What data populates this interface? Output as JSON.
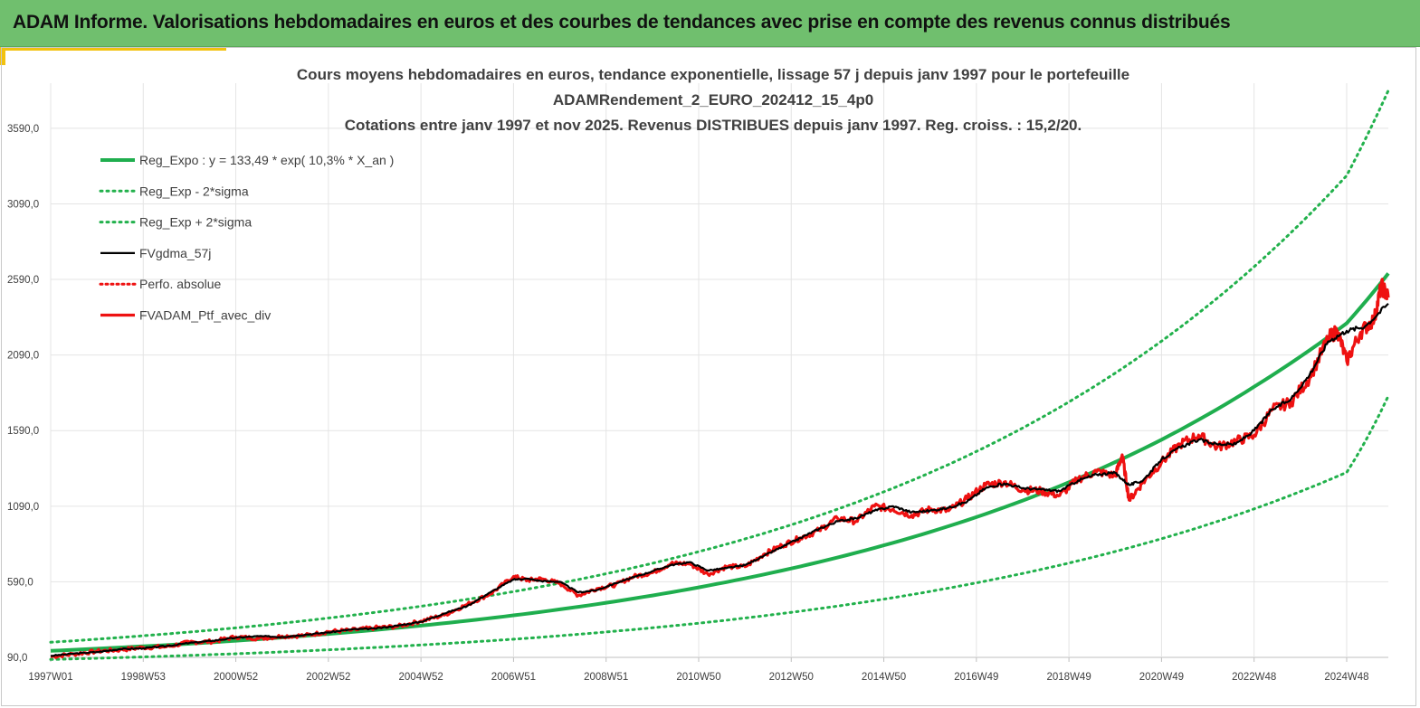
{
  "page": {
    "banner_title": "ADAM Informe. Valorisations hebdomadaires en euros et des courbes de tendances avec prise en compte des revenus connus distribués"
  },
  "colors": {
    "banner": "#70bf6e",
    "accent": "#f2c20f",
    "reg_expo": "#1fae4e",
    "band": "#22b14c",
    "gdma": "#000000",
    "ptf": "#ee1111",
    "grid": "#e4e4e4",
    "text": "#404040"
  },
  "chart_data": {
    "type": "line",
    "title_lines": [
      "Cours moyens hebdomadaires  en euros, tendance exponentielle, lissage 57 j depuis janv 1997 pour le portefeuille",
      "ADAMRendement_2_EURO_202412_15_4p0",
      "Cotations  entre janv 1997 et nov 2025. Revenus DISTRIBUES depuis janv 1997. Reg. croiss. : 15,2/20."
    ],
    "x_range": [
      1997.0,
      2025.9
    ],
    "y_range": [
      90,
      3960
    ],
    "y_ticks": [
      90,
      590,
      1090,
      1590,
      2090,
      2590,
      3090,
      3590
    ],
    "y_tick_labels": [
      "90,0",
      "590,0",
      "1090,0",
      "1590,0",
      "2090,0",
      "2590,0",
      "3090,0",
      "3590,0"
    ],
    "x_ticks": [
      1997.0,
      1999.0,
      2001.0,
      2003.0,
      2005.0,
      2007.0,
      2009.0,
      2011.0,
      2013.0,
      2015.0,
      2017.0,
      2019.0,
      2021.0,
      2023.0,
      2025.0
    ],
    "x_tick_labels": [
      "1997W01",
      "1998W53",
      "2000W52",
      "2002W52",
      "2004W52",
      "2006W51",
      "2008W51",
      "2010W50",
      "2012W50",
      "2014W50",
      "2016W49",
      "2018W49",
      "2020W49",
      "2022W48",
      "2024W48"
    ],
    "legend": [
      {
        "key": "reg_expo",
        "label": "Reg_Expo : y = 133,49 * exp( 10,3% *  X_an )"
      },
      {
        "key": "reg_low",
        "label": "Reg_Exp - 2*sigma"
      },
      {
        "key": "reg_high",
        "label": "Reg_Exp + 2*sigma"
      },
      {
        "key": "gdma",
        "label": "FVgdma_57j"
      },
      {
        "key": "perfo",
        "label": "Perfo. absolue"
      },
      {
        "key": "ptf",
        "label": "FVADAM_Ptf_avec_div"
      }
    ],
    "series": [
      {
        "name": "Reg_Expo",
        "key": "reg_expo",
        "x": [
          1997,
          1999,
          2001,
          2003,
          2005,
          2007,
          2009,
          2011,
          2013,
          2015,
          2017,
          2019,
          2021,
          2023,
          2025,
          2025.9
        ],
        "values": [
          133,
          163,
          200,
          245,
          300,
          368,
          451,
          553,
          678,
          831,
          1018,
          1248,
          1530,
          1880,
          2300,
          2630
        ]
      },
      {
        "name": "Reg_Exp - 2*sigma",
        "key": "reg_low",
        "x": [
          1997,
          1999,
          2001,
          2003,
          2005,
          2007,
          2009,
          2011,
          2013,
          2015,
          2017,
          2019,
          2021,
          2023,
          2025,
          2025.9
        ],
        "values": [
          76,
          93,
          114,
          140,
          172,
          210,
          258,
          316,
          388,
          475,
          583,
          714,
          875,
          1072,
          1314,
          1820
        ]
      },
      {
        "name": "Reg_Exp + 2*sigma",
        "key": "reg_high",
        "x": [
          1997,
          1999,
          2001,
          2003,
          2005,
          2007,
          2009,
          2011,
          2013,
          2015,
          2017,
          2019,
          2021,
          2023,
          2025,
          2025.9
        ],
        "values": [
          190,
          233,
          285,
          350,
          428,
          525,
          643,
          789,
          967,
          1185,
          1452,
          1780,
          2182,
          2674,
          3277,
          3840
        ]
      },
      {
        "name": "FVgdma_57j",
        "key": "gdma",
        "x": [
          1997.0,
          1997.5,
          1998.0,
          1998.5,
          1999.0,
          1999.5,
          2000.0,
          2000.5,
          2001.0,
          2001.5,
          2002.0,
          2002.5,
          2003.0,
          2003.5,
          2004.0,
          2004.5,
          2005.0,
          2005.5,
          2006.0,
          2006.5,
          2007.0,
          2007.3,
          2007.6,
          2008.0,
          2008.4,
          2008.8,
          2009.2,
          2009.6,
          2010.0,
          2010.4,
          2010.8,
          2011.2,
          2011.6,
          2012.0,
          2012.4,
          2012.8,
          2013.2,
          2013.6,
          2014.0,
          2014.4,
          2014.8,
          2015.2,
          2015.6,
          2016.0,
          2016.4,
          2016.8,
          2017.2,
          2017.6,
          2018.0,
          2018.4,
          2018.8,
          2019.2,
          2019.6,
          2020.0,
          2020.3,
          2020.6,
          2021.0,
          2021.4,
          2021.8,
          2022.2,
          2022.6,
          2023.0,
          2023.4,
          2023.8,
          2024.2,
          2024.6,
          2025.0,
          2025.4,
          2025.9
        ],
        "values": [
          100,
          115,
          125,
          145,
          150,
          165,
          185,
          200,
          220,
          230,
          225,
          240,
          255,
          275,
          280,
          300,
          325,
          380,
          430,
          520,
          605,
          610,
          595,
          590,
          520,
          535,
          580,
          620,
          660,
          700,
          720,
          665,
          680,
          700,
          760,
          820,
          880,
          940,
          990,
          1010,
          1060,
          1090,
          1050,
          1060,
          1080,
          1120,
          1210,
          1240,
          1210,
          1200,
          1190,
          1260,
          1300,
          1310,
          1230,
          1260,
          1400,
          1480,
          1530,
          1500,
          1500,
          1590,
          1730,
          1800,
          1960,
          2180,
          2250,
          2280,
          2430
        ]
      },
      {
        "name": "FVADAM_Ptf_avec_div",
        "key": "ptf",
        "x": [
          1997.0,
          1997.5,
          1998.0,
          1998.5,
          1999.0,
          1999.5,
          2000.0,
          2000.5,
          2001.0,
          2001.5,
          2002.0,
          2002.5,
          2003.0,
          2003.5,
          2004.0,
          2004.5,
          2005.0,
          2005.5,
          2006.0,
          2006.5,
          2007.0,
          2007.3,
          2007.6,
          2008.0,
          2008.4,
          2008.8,
          2009.2,
          2009.6,
          2010.0,
          2010.4,
          2010.8,
          2011.2,
          2011.6,
          2012.0,
          2012.4,
          2012.8,
          2013.2,
          2013.6,
          2014.0,
          2014.4,
          2014.8,
          2015.2,
          2015.6,
          2016.0,
          2016.4,
          2016.8,
          2017.2,
          2017.6,
          2018.0,
          2018.4,
          2018.8,
          2019.2,
          2019.6,
          2020.0,
          2020.15,
          2020.3,
          2020.6,
          2021.0,
          2021.4,
          2021.8,
          2022.2,
          2022.6,
          2023.0,
          2023.4,
          2023.8,
          2024.2,
          2024.6,
          2024.8,
          2025.0,
          2025.3,
          2025.6,
          2025.75,
          2025.9
        ],
        "values": [
          95,
          112,
          130,
          140,
          155,
          160,
          190,
          195,
          225,
          215,
          230,
          235,
          260,
          270,
          285,
          295,
          330,
          370,
          440,
          510,
          625,
          600,
          610,
          580,
          500,
          545,
          570,
          625,
          650,
          710,
          710,
          640,
          690,
          690,
          770,
          830,
          880,
          930,
          1010,
          990,
          1090,
          1070,
          1030,
          1070,
          1060,
          1140,
          1230,
          1250,
          1200,
          1190,
          1160,
          1270,
          1320,
          1290,
          1430,
          1130,
          1250,
          1380,
          1500,
          1560,
          1480,
          1520,
          1560,
          1730,
          1780,
          1940,
          2200,
          2250,
          2050,
          2240,
          2330,
          2550,
          2470
        ]
      }
    ]
  }
}
